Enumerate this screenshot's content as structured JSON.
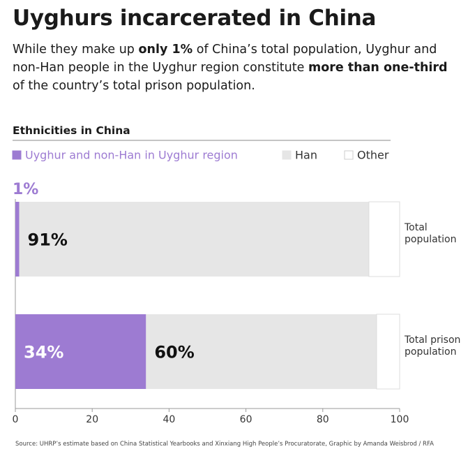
{
  "chart_data": {
    "type": "stacked_bar_horizontal",
    "title": "Uyghurs incarcerated in China",
    "subtitle": [
      "While they make up ",
      "only 1%",
      " of China’s total population, Uyghur and non-Han people in the Uyghur region constitute ",
      "more than one-third",
      " of the country’s total prison population."
    ],
    "legend_title": "Ethnicities in China",
    "categories": [
      "Total population",
      "Total prison population"
    ],
    "series": [
      {
        "name": "Uyghur and non-Han in Uyghur region",
        "color": "#9d7bd2",
        "values": [
          1,
          34
        ],
        "value_labels": [
          "1%",
          "34%"
        ]
      },
      {
        "name": "Han",
        "color": "#e6e6e6",
        "values": [
          91,
          60
        ],
        "value_labels": [
          "91%",
          "60%"
        ]
      },
      {
        "name": "Other",
        "color": "#ffffff",
        "values": [
          8,
          6
        ]
      }
    ],
    "xlim": [
      0,
      100
    ],
    "xticks": [
      0,
      20,
      40,
      60,
      80,
      100
    ],
    "source": "Source: UHRP’s estimate based on China Statistical Yearbooks and Xinxiang High People’s Procuratorate, Graphic by Amanda Weisbrod / RFA"
  }
}
